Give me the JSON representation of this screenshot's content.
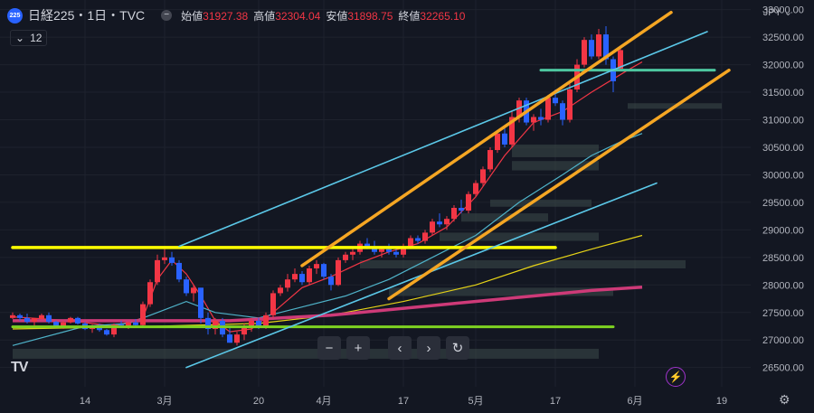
{
  "header": {
    "logo_text": "225",
    "symbol": "日経225・1日・TVC",
    "ohlc": [
      {
        "label": "始値",
        "value": "31927.38"
      },
      {
        "label": "高値",
        "value": "32304.04"
      },
      {
        "label": "安値",
        "value": "31898.75"
      },
      {
        "label": "終値",
        "value": "32265.10"
      }
    ],
    "value_color": "#f23645"
  },
  "indicator": {
    "icon": "chevron-down-icon",
    "value": "12"
  },
  "currency": {
    "label": "JPY",
    "icon": "chevron-down-icon"
  },
  "toolbar": [
    {
      "name": "zoom-out-button",
      "icon": "minus-icon",
      "label": "−"
    },
    {
      "name": "zoom-in-button",
      "icon": "plus-icon",
      "label": "+"
    },
    {
      "name": "scroll-left-button",
      "icon": "chevron-left-icon",
      "label": "‹"
    },
    {
      "name": "scroll-right-button",
      "icon": "chevron-right-icon",
      "label": "›"
    },
    {
      "name": "reset-button",
      "icon": "reset-icon",
      "label": "↻"
    }
  ],
  "watermark": "TV",
  "chart_data": {
    "type": "candlestick",
    "y_axis": {
      "ylim": [
        26150,
        33175
      ],
      "ticks": [
        26500,
        27000,
        27500,
        28000,
        28500,
        29000,
        29500,
        30000,
        30500,
        31000,
        31500,
        32000,
        32500,
        33000
      ],
      "tick_labels": [
        "26500.00",
        "27000.00",
        "27500.00",
        "28000.00",
        "28500.00",
        "29000.00",
        "29500.00",
        "30000.00",
        "30500.00",
        "31000.00",
        "31500.00",
        "32000.00",
        "32500.00",
        "33000.00"
      ],
      "position": "right"
    },
    "x_axis": {
      "tick_labels": [
        {
          "label": "14",
          "day": 10
        },
        {
          "label": "3月",
          "day": 21
        },
        {
          "label": "20",
          "day": 34
        },
        {
          "label": "4月",
          "day": 43
        },
        {
          "label": "17",
          "day": 54
        },
        {
          "label": "5月",
          "day": 64
        },
        {
          "label": "17",
          "day": 75
        },
        {
          "label": "6月",
          "day": 86
        },
        {
          "label": "19",
          "day": 98
        },
        {
          "label": "",
          "day": 0
        }
      ]
    },
    "colors": {
      "up": "#f23645",
      "down": "#2962ff",
      "grid": "#1e222d"
    },
    "candles": [
      [
        27400,
        27500,
        27380,
        27450
      ],
      [
        27450,
        27480,
        27350,
        27400
      ],
      [
        27400,
        27480,
        27300,
        27330
      ],
      [
        27330,
        27400,
        27250,
        27390
      ],
      [
        27390,
        27480,
        27380,
        27450
      ],
      [
        27450,
        27500,
        27300,
        27330
      ],
      [
        27330,
        27350,
        27220,
        27250
      ],
      [
        27250,
        27350,
        27200,
        27320
      ],
      [
        27320,
        27420,
        27300,
        27400
      ],
      [
        27400,
        27420,
        27280,
        27300
      ],
      [
        27300,
        27330,
        27180,
        27200
      ],
      [
        27200,
        27280,
        27130,
        27250
      ],
      [
        27250,
        27300,
        27150,
        27180
      ],
      [
        27180,
        27200,
        27080,
        27100
      ],
      [
        27100,
        27300,
        27050,
        27280
      ],
      [
        27280,
        27350,
        27220,
        27250
      ],
      [
        27250,
        27330,
        27200,
        27320
      ],
      [
        27320,
        27380,
        27250,
        27270
      ],
      [
        27270,
        27700,
        27250,
        27650
      ],
      [
        27650,
        28100,
        27600,
        28050
      ],
      [
        28050,
        28550,
        28000,
        28450
      ],
      [
        28450,
        28650,
        28380,
        28500
      ],
      [
        28500,
        28600,
        28350,
        28400
      ],
      [
        28400,
        28450,
        28050,
        28100
      ],
      [
        28100,
        28150,
        27800,
        27850
      ],
      [
        27850,
        28000,
        27700,
        27950
      ],
      [
        27950,
        27950,
        27300,
        27400
      ],
      [
        27400,
        27500,
        27100,
        27200
      ],
      [
        27200,
        27400,
        27100,
        27350
      ],
      [
        27350,
        27400,
        27050,
        27100
      ],
      [
        27100,
        27250,
        26950,
        26950
      ],
      [
        26950,
        27150,
        26900,
        27100
      ],
      [
        27100,
        27300,
        27000,
        27250
      ],
      [
        27250,
        27400,
        27150,
        27350
      ],
      [
        27350,
        27400,
        27200,
        27250
      ],
      [
        27250,
        27500,
        27200,
        27450
      ],
      [
        27450,
        27900,
        27400,
        27850
      ],
      [
        27850,
        28000,
        27800,
        27950
      ],
      [
        27950,
        28200,
        27880,
        28100
      ],
      [
        28100,
        28300,
        28050,
        28200
      ],
      [
        28200,
        28250,
        28000,
        28050
      ],
      [
        28050,
        28350,
        28000,
        28300
      ],
      [
        28300,
        28450,
        28200,
        28380
      ],
      [
        28380,
        28400,
        28100,
        28150
      ],
      [
        28150,
        28200,
        27900,
        28000
      ],
      [
        28000,
        28500,
        27980,
        28450
      ],
      [
        28450,
        28600,
        28400,
        28550
      ],
      [
        28550,
        28650,
        28450,
        28600
      ],
      [
        28600,
        28800,
        28550,
        28750
      ],
      [
        28750,
        28850,
        28650,
        28700
      ],
      [
        28700,
        28800,
        28550,
        28600
      ],
      [
        28600,
        28700,
        28500,
        28650
      ],
      [
        28650,
        28750,
        28550,
        28600
      ],
      [
        28600,
        28700,
        28500,
        28550
      ],
      [
        28550,
        28750,
        28500,
        28700
      ],
      [
        28700,
        28900,
        28650,
        28850
      ],
      [
        28850,
        28900,
        28750,
        28800
      ],
      [
        28800,
        29000,
        28750,
        28950
      ],
      [
        28950,
        29200,
        28900,
        29150
      ],
      [
        29150,
        29300,
        29050,
        29100
      ],
      [
        29100,
        29250,
        29000,
        29200
      ],
      [
        29200,
        29450,
        29150,
        29400
      ],
      [
        29400,
        29550,
        29300,
        29350
      ],
      [
        29350,
        29700,
        29300,
        29650
      ],
      [
        29650,
        29900,
        29600,
        29850
      ],
      [
        29850,
        30150,
        29800,
        30100
      ],
      [
        30100,
        30500,
        30050,
        30450
      ],
      [
        30450,
        30800,
        30400,
        30750
      ],
      [
        30750,
        30850,
        30500,
        30550
      ],
      [
        30550,
        31150,
        30500,
        31050
      ],
      [
        31050,
        31400,
        30950,
        31350
      ],
      [
        31350,
        31400,
        30900,
        30950
      ],
      [
        30950,
        31100,
        30800,
        31050
      ],
      [
        31050,
        31200,
        30900,
        31000
      ],
      [
        31000,
        31450,
        30950,
        31400
      ],
      [
        31400,
        31550,
        31250,
        31300
      ],
      [
        31300,
        31350,
        30900,
        31000
      ],
      [
        31000,
        31650,
        30950,
        31550
      ],
      [
        31550,
        32100,
        31500,
        32000
      ],
      [
        32000,
        32500,
        31950,
        32450
      ],
      [
        32450,
        32550,
        32100,
        32150
      ],
      [
        32150,
        32650,
        32100,
        32550
      ],
      [
        32550,
        32700,
        32000,
        32100
      ],
      [
        32100,
        32150,
        31500,
        31700
      ],
      [
        31927.38,
        32304.04,
        31898.75,
        32265.1
      ]
    ],
    "moving_averages": [
      {
        "name": "MA-short",
        "color": "#f23645",
        "points": [
          [
            0,
            27420
          ],
          [
            8,
            27350
          ],
          [
            14,
            27250
          ],
          [
            18,
            27400
          ],
          [
            20,
            28100
          ],
          [
            22,
            28450
          ],
          [
            24,
            28200
          ],
          [
            26,
            27800
          ],
          [
            28,
            27350
          ],
          [
            30,
            27150
          ],
          [
            33,
            27200
          ],
          [
            36,
            27500
          ],
          [
            40,
            27950
          ],
          [
            44,
            28150
          ],
          [
            48,
            28400
          ],
          [
            52,
            28600
          ],
          [
            56,
            28750
          ],
          [
            60,
            29050
          ],
          [
            64,
            29600
          ],
          [
            68,
            30350
          ],
          [
            72,
            30950
          ],
          [
            76,
            31150
          ],
          [
            80,
            31500
          ],
          [
            85,
            31900
          ],
          [
            87,
            32050
          ]
        ]
      },
      {
        "name": "MA-mid",
        "color": "#4fb3c9",
        "points": [
          [
            0,
            26900
          ],
          [
            10,
            27250
          ],
          [
            16,
            27300
          ],
          [
            20,
            27500
          ],
          [
            24,
            27700
          ],
          [
            28,
            27500
          ],
          [
            34,
            27400
          ],
          [
            40,
            27600
          ],
          [
            46,
            27800
          ],
          [
            52,
            28100
          ],
          [
            58,
            28500
          ],
          [
            64,
            28900
          ],
          [
            70,
            29500
          ],
          [
            76,
            30000
          ],
          [
            80,
            30350
          ],
          [
            84,
            30600
          ],
          [
            87,
            30750
          ]
        ]
      },
      {
        "name": "MA-long",
        "color": "#e6d317",
        "points": [
          [
            0,
            27200
          ],
          [
            20,
            27250
          ],
          [
            34,
            27300
          ],
          [
            44,
            27450
          ],
          [
            54,
            27700
          ],
          [
            64,
            28000
          ],
          [
            72,
            28350
          ],
          [
            80,
            28650
          ],
          [
            87,
            28900
          ]
        ]
      },
      {
        "name": "MA-200",
        "color": "#ce3a78",
        "points": [
          [
            0,
            27350
          ],
          [
            30,
            27350
          ],
          [
            44,
            27450
          ],
          [
            60,
            27650
          ],
          [
            72,
            27800
          ],
          [
            80,
            27900
          ],
          [
            87,
            27960
          ]
        ]
      }
    ],
    "trendlines": [
      {
        "name": "support-yellow",
        "color": "#ffff00",
        "points": [
          [
            0,
            28680
          ],
          [
            75,
            28680
          ]
        ]
      },
      {
        "name": "support-green",
        "color": "#7ed321",
        "points": [
          [
            0,
            27240
          ],
          [
            83,
            27240
          ]
        ]
      },
      {
        "name": "resistance-teal",
        "color": "#4dc6a0",
        "points": [
          [
            73,
            31900
          ],
          [
            97,
            31900
          ]
        ]
      },
      {
        "name": "channel-cyan-upper",
        "color": "#5bc8e8",
        "points": [
          [
            23,
            28700
          ],
          [
            96,
            32600
          ]
        ]
      },
      {
        "name": "channel-cyan-lower",
        "color": "#5bc8e8",
        "points": [
          [
            24,
            26500
          ],
          [
            89,
            29850
          ]
        ]
      },
      {
        "name": "channel-orange-upper",
        "color": "#f5a623",
        "points": [
          [
            40,
            28350
          ],
          [
            91,
            32950
          ]
        ]
      },
      {
        "name": "channel-orange-lower",
        "color": "#f5a623",
        "points": [
          [
            52,
            27750
          ],
          [
            99,
            31900
          ]
        ]
      }
    ],
    "zones": [
      {
        "from_day": 0,
        "to_day": 81,
        "y_top": 26840,
        "y_bottom": 26660
      },
      {
        "from_day": 48,
        "to_day": 93,
        "y_top": 28450,
        "y_bottom": 28300
      },
      {
        "from_day": 52,
        "to_day": 83,
        "y_top": 27950,
        "y_bottom": 27800
      },
      {
        "from_day": 59,
        "to_day": 81,
        "y_top": 28950,
        "y_bottom": 28800
      },
      {
        "from_day": 62,
        "to_day": 74,
        "y_top": 29300,
        "y_bottom": 29150
      },
      {
        "from_day": 66,
        "to_day": 80,
        "y_top": 29550,
        "y_bottom": 29420
      },
      {
        "from_day": 69,
        "to_day": 81,
        "y_top": 30550,
        "y_bottom": 30320
      },
      {
        "from_day": 69,
        "to_day": 81,
        "y_top": 30250,
        "y_bottom": 30080
      },
      {
        "from_day": 85,
        "to_day": 98,
        "y_top": 31300,
        "y_bottom": 31200
      }
    ]
  }
}
